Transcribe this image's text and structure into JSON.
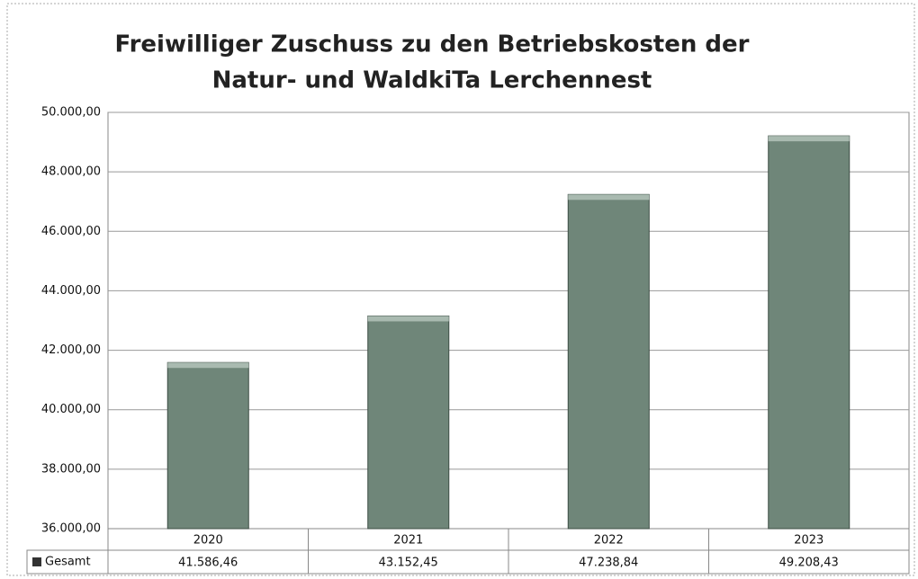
{
  "chart_data": {
    "type": "bar",
    "title": [
      "Freiwilliger Zuschuss zu den Betriebskosten der",
      "Natur- und WaldkiTa Lerchennest"
    ],
    "categories": [
      "2020",
      "2021",
      "2022",
      "2023"
    ],
    "series": [
      {
        "name": "Gesamt",
        "color": "#6f8679",
        "values": [
          41586.46,
          43152.45,
          47238.84,
          49208.43
        ],
        "value_labels": [
          "41.586,46",
          "43.152,45",
          "47.238,84",
          "49.208,43"
        ]
      }
    ],
    "ylim": [
      36000,
      50000
    ],
    "yticks": [
      {
        "value": 36000,
        "label": "36.000,00"
      },
      {
        "value": 38000,
        "label": "38.000,00"
      },
      {
        "value": 40000,
        "label": "40.000,00"
      },
      {
        "value": 42000,
        "label": "42.000,00"
      },
      {
        "value": 44000,
        "label": "44.000,00"
      },
      {
        "value": 46000,
        "label": "46.000,00"
      },
      {
        "value": 48000,
        "label": "48.000,00"
      },
      {
        "value": 50000,
        "label": "50.000,00"
      }
    ],
    "grid": true,
    "legend": "table"
  }
}
